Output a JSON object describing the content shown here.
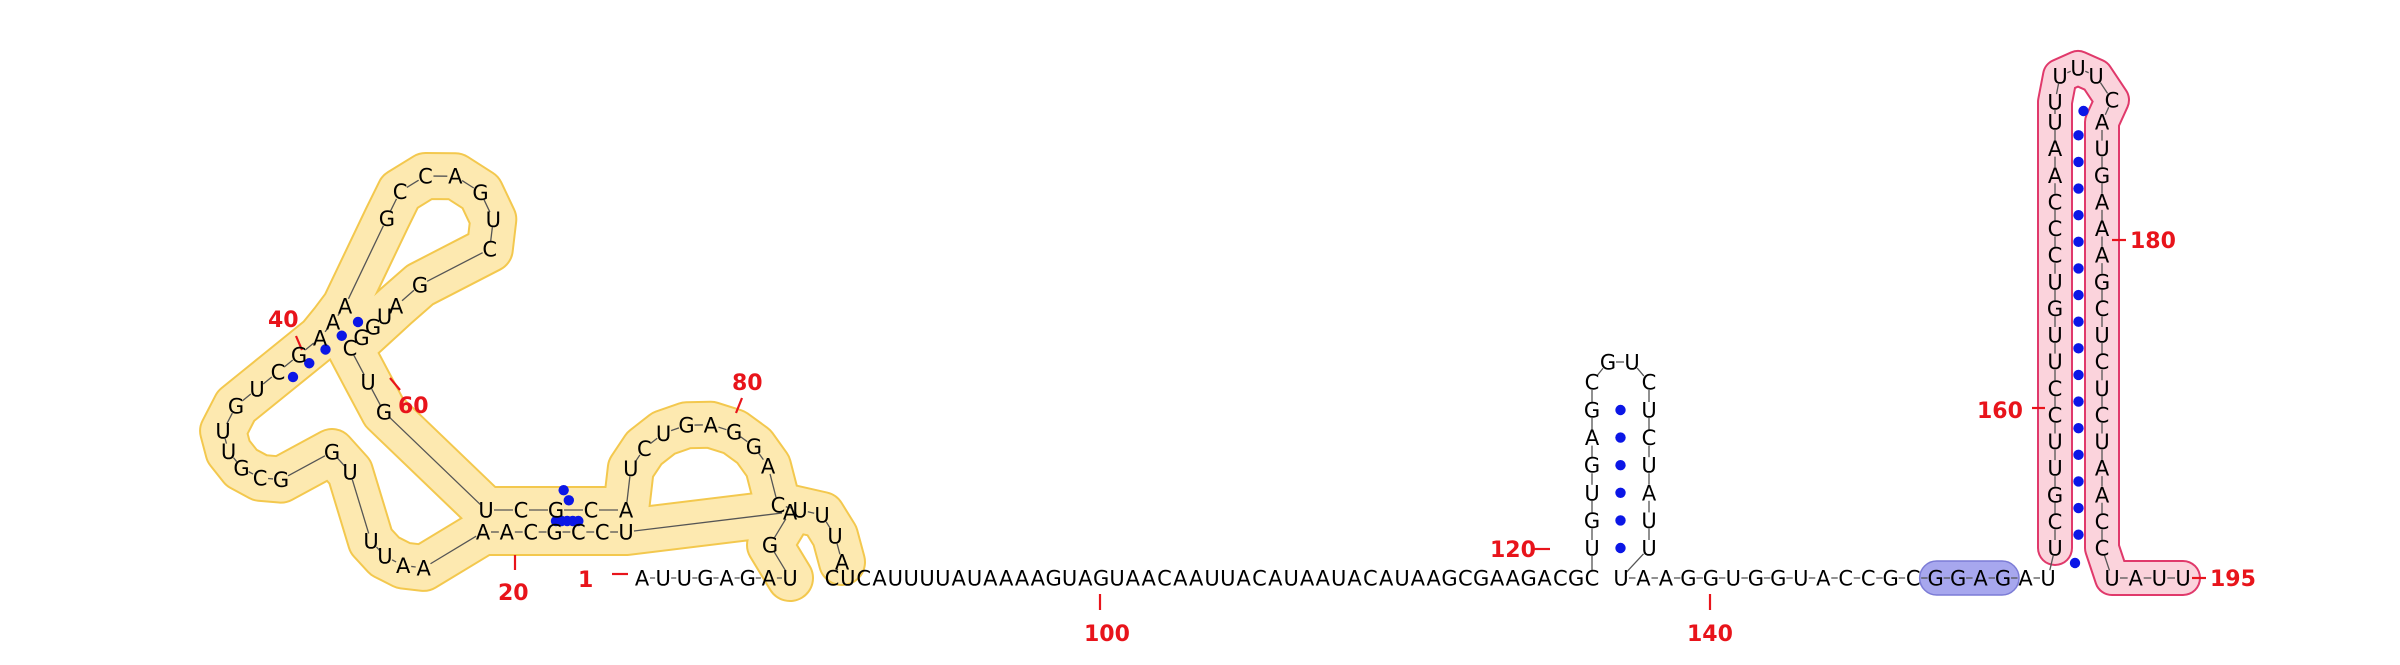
{
  "colors": {
    "domain1_fill": "#fde9b0",
    "domain1_stroke": "#f3c84e",
    "domain2_fill": "#fbd3dc",
    "domain2_stroke": "#e0396b",
    "motif_fill": "#a7a7ee",
    "motif_stroke": "#7c7cd6",
    "base_pair": "#0b16e6",
    "index_label": "#e8141b",
    "nucleotide": "#000000"
  },
  "structure": {
    "sequence": "AUUGAGAUGAUCCGCAAAAUUUGGCGUUGUCGAAAGCCAGUCGAUGGCUGUCGCAUCUGAGGACUUUACUCAUUUUAUAAAAGUAGUAACAAUUACAUAAUACAUAAGCGAAGACGCUGUGAGCGUCUCUAUUUAAGGUGGUACCGCGGAGAUUCGUUCCUUGUCCCAAUUUUUCAUGAAAGCUCUCUAACCUAUUUU",
    "index_labels": [
      "1",
      "20",
      "40",
      "60",
      "80",
      "100",
      "120",
      "140",
      "160",
      "180",
      "195"
    ]
  }
}
